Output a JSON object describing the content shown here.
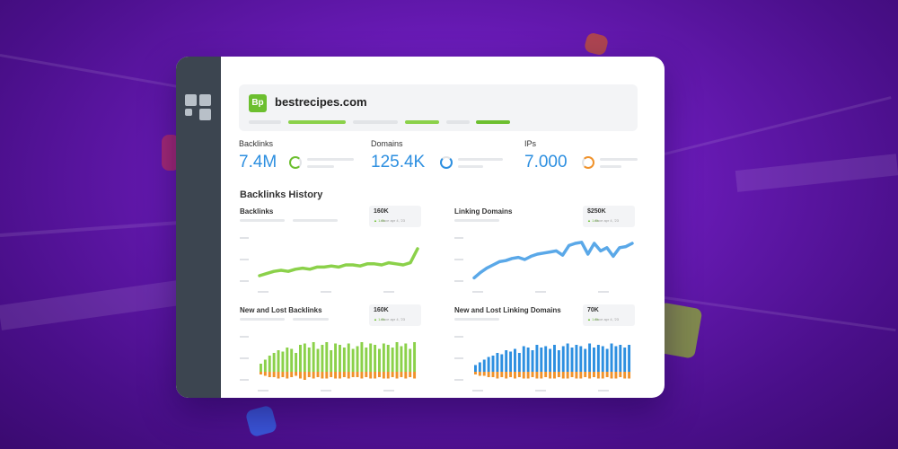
{
  "app": {
    "site_name": "bestrecipes.com",
    "favicon_text": "Bp"
  },
  "metrics": {
    "backlinks": {
      "label": "Backlinks",
      "value": "7.4M",
      "ring_color": "#6cbf2f"
    },
    "domains": {
      "label": "Domains",
      "value": "125.4K",
      "ring_color": "#2d8fe0"
    },
    "ips": {
      "label": "IPs",
      "value": "7.000",
      "ring_color": "#f0922b"
    }
  },
  "history": {
    "title": "Backlinks History",
    "backlinks": {
      "title": "Backlinks",
      "stat": "160K",
      "delta": "▲ 1.8k",
      "delta_note": "since apr 4, '23"
    },
    "linking_domains": {
      "title": "Linking Domains",
      "stat": "$250K",
      "delta": "▲ 1.8k",
      "delta_note": "since apr 4, '23"
    },
    "new_lost_backlinks": {
      "title": "New and Lost Backlinks",
      "stat": "160K",
      "delta": "▲ 1.8k",
      "delta_note": "since apr 4, '23"
    },
    "new_lost_domains": {
      "title": "New and Lost Linking Domains",
      "stat": "70K",
      "delta": "▲ 1.8k",
      "delta_note": "since apr 4, '23"
    }
  },
  "colors": {
    "accent_blue": "#2d8fe0",
    "accent_green": "#6cbf2f",
    "accent_orange": "#f0922b",
    "line_blue": "#5aa8e8",
    "line_green": "#8bd14a"
  },
  "chart_data": [
    {
      "type": "line",
      "series": [
        {
          "values": [
            10,
            12,
            14,
            15,
            14,
            16,
            17,
            16,
            18,
            18,
            19,
            18,
            20,
            20,
            19,
            21,
            21,
            20,
            22,
            21,
            20,
            22,
            35
          ]
        }
      ],
      "ylim": [
        0,
        50
      ]
    },
    {
      "type": "line",
      "series": [
        {
          "values": [
            8,
            13,
            17,
            20,
            23,
            24,
            26,
            27,
            25,
            28,
            30,
            31,
            32,
            33,
            29,
            38,
            40,
            41,
            30,
            40,
            33,
            36,
            28,
            36,
            37,
            40
          ]
        }
      ],
      "ylim": [
        0,
        50
      ]
    },
    {
      "type": "bar",
      "series": [
        {
          "values": [
            6,
            9,
            12,
            14,
            16,
            15,
            18,
            17,
            14,
            20,
            21,
            18,
            22,
            17,
            20,
            22,
            16,
            21,
            20,
            18,
            21,
            17,
            19,
            22,
            18,
            21,
            20,
            17,
            21,
            20,
            18,
            22,
            19,
            21,
            17,
            22
          ]
        },
        {
          "values": [
            -2,
            -3,
            -4,
            -4,
            -5,
            -4,
            -5,
            -4,
            -3,
            -5,
            -6,
            -4,
            -5,
            -4,
            -5,
            -5,
            -4,
            -5,
            -5,
            -4,
            -5,
            -4,
            -4,
            -5,
            -4,
            -5,
            -5,
            -4,
            -5,
            -5,
            -4,
            -5,
            -4,
            -5,
            -4,
            -5
          ]
        }
      ],
      "ylim": [
        -10,
        30
      ]
    },
    {
      "type": "bar",
      "series": [
        {
          "values": [
            5,
            7,
            9,
            11,
            12,
            14,
            13,
            16,
            15,
            17,
            14,
            19,
            18,
            16,
            20,
            18,
            19,
            17,
            20,
            16,
            19,
            21,
            18,
            20,
            19,
            17,
            21,
            18,
            20,
            19,
            17,
            21,
            19,
            20,
            18,
            20
          ]
        },
        {
          "values": [
            -2,
            -3,
            -3,
            -4,
            -4,
            -5,
            -4,
            -5,
            -4,
            -5,
            -4,
            -5,
            -5,
            -4,
            -5,
            -5,
            -4,
            -5,
            -5,
            -4,
            -5,
            -5,
            -4,
            -5,
            -5,
            -4,
            -5,
            -4,
            -5,
            -5,
            -4,
            -5,
            -5,
            -4,
            -5,
            -5
          ]
        }
      ],
      "ylim": [
        -10,
        30
      ]
    }
  ]
}
